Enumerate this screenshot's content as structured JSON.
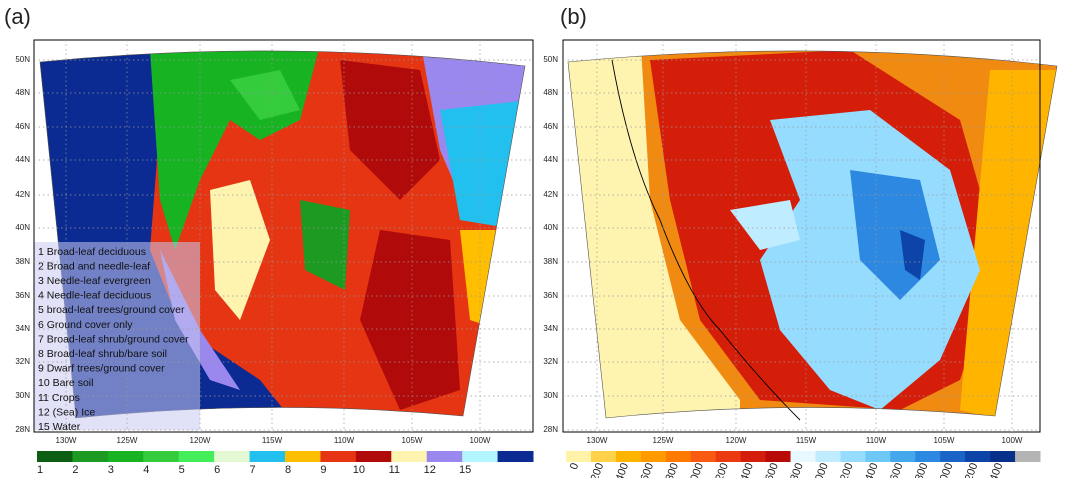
{
  "panels": [
    {
      "label": "(a)",
      "lat_ticks": [
        "50N",
        "48N",
        "46N",
        "44N",
        "42N",
        "40N",
        "38N",
        "36N",
        "34N",
        "32N",
        "30N",
        "28N"
      ],
      "lon_ticks": [
        "130W",
        "125W",
        "120W",
        "115W",
        "110W",
        "105W",
        "100W"
      ],
      "legend": [
        "1 Broad-leaf deciduous",
        "2 Broad and needle-leaf",
        "3 Needle-leaf evergreen",
        "4 Needle-leaf deciduous",
        "5 broad-leaf trees/ground cover",
        "6 Ground cover only",
        "7 Broad-leaf shrub/ground cover",
        "8 Broad-leaf shrub/bare soil",
        "9 Dwarf trees/ground cover",
        "10 Bare soil",
        "11 Crops",
        "12 (Sea) Ice",
        "15 Water"
      ],
      "colorbar": {
        "colors": [
          "#0b5e12",
          "#1c9a22",
          "#17b322",
          "#34cc3c",
          "#44ee5a",
          "#e4f8d4",
          "#22c0ee",
          "#ffbf00",
          "#e53512",
          "#b00a0a",
          "#fff3b0",
          "#9a88ee",
          "#b4f6ff",
          "#0b2a92"
        ],
        "labels": [
          "1",
          "2",
          "3",
          "4",
          "5",
          "6",
          "7",
          "8",
          "9",
          "10",
          "11",
          "12",
          "15"
        ]
      }
    },
    {
      "label": "(b)",
      "lat_ticks": [
        "50N",
        "48N",
        "46N",
        "44N",
        "42N",
        "40N",
        "38N",
        "36N",
        "34N",
        "32N",
        "30N",
        "28N"
      ],
      "lon_ticks": [
        "130W",
        "125W",
        "120W",
        "115W",
        "110W",
        "105W",
        "100W"
      ],
      "colorbar": {
        "colors": [
          "#fff3a8",
          "#ffd24a",
          "#ffb400",
          "#ff9a00",
          "#ff7a00",
          "#f75a10",
          "#e93a10",
          "#d41e0a",
          "#b80a06",
          "#e8f8ff",
          "#c0ecff",
          "#96dcff",
          "#6ec8f6",
          "#46a8ec",
          "#2c88e0",
          "#1a64c8",
          "#0c44a8",
          "#08308a",
          "#b4b4b4"
        ],
        "labels": [
          0,
          200,
          400,
          600,
          800,
          1000,
          1200,
          1400,
          1600,
          1800,
          2000,
          2200,
          2400,
          2600,
          2800,
          3000,
          3200,
          3400
        ]
      }
    }
  ]
}
